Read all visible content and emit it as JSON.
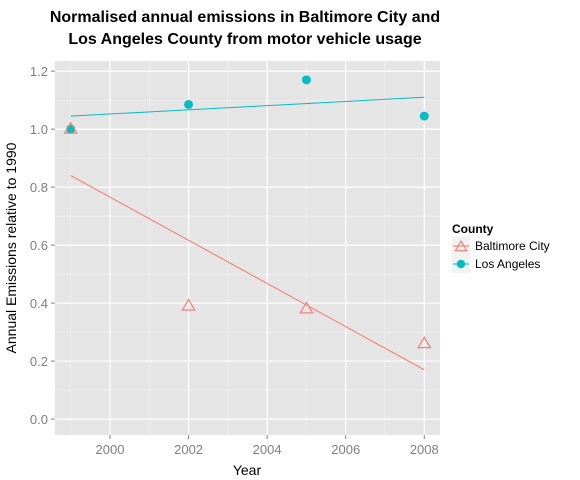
{
  "chart_data": {
    "type": "scatter",
    "title_lines": [
      "Normalised annual emissions in Baltimore City and",
      "Los Angeles County from motor vehicle usage"
    ],
    "xlabel": "Year",
    "ylabel": "Annual Emissions relative to 1990",
    "xlim": [
      1998.6,
      2008.4
    ],
    "ylim": [
      -0.055,
      1.235
    ],
    "x_ticks": [
      2000,
      2002,
      2004,
      2006,
      2008
    ],
    "x_tick_labels": [
      "2000",
      "2002",
      "2004",
      "2006",
      "2008"
    ],
    "y_ticks": [
      0.0,
      0.2,
      0.4,
      0.6,
      0.8,
      1.0,
      1.2
    ],
    "y_tick_labels": [
      "0.0",
      "0.2",
      "0.4",
      "0.6",
      "0.8",
      "1.0",
      "1.2"
    ],
    "grid": true,
    "legend": {
      "title": "County",
      "position": "right",
      "entries": [
        "Baltimore City",
        "Los Angeles"
      ]
    },
    "series": [
      {
        "name": "Baltimore City",
        "marker": "triangle-open",
        "color": "#F8766D",
        "x": [
          1999,
          2002,
          2005,
          2008
        ],
        "y": [
          1.0,
          0.39,
          0.38,
          0.26
        ],
        "trend": {
          "x": [
            1999,
            2008
          ],
          "y": [
            0.84,
            0.17
          ]
        }
      },
      {
        "name": "Los Angeles",
        "marker": "circle-filled",
        "color": "#00BFC4",
        "x": [
          1999,
          2002,
          2005,
          2008
        ],
        "y": [
          1.0,
          1.085,
          1.17,
          1.045
        ],
        "trend": {
          "x": [
            1999,
            2008
          ],
          "y": [
            1.045,
            1.11
          ]
        }
      }
    ]
  }
}
